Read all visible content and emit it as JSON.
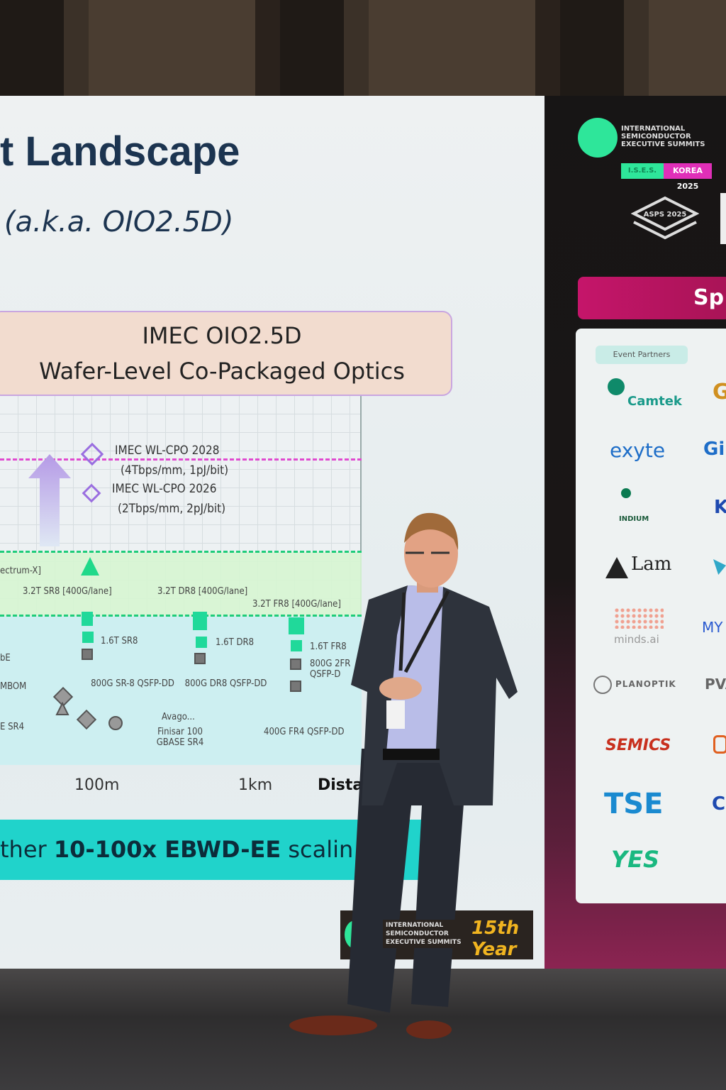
{
  "slide": {
    "title": "t Landscape",
    "subtitle": "(a.k.a. OIO2.5D)",
    "box_line1": "IMEC OIO2.5D",
    "box_line2": "Wafer-Level Co-Packaged Optics",
    "annotations": {
      "wlcpo2028": "IMEC WL-CPO 2028",
      "wlcpo2028_spec": "(4Tbps/mm, 1pJ/bit)",
      "wlcpo2026": "IMEC WL-CPO 2026",
      "wlcpo2026_spec": "(2Tbps/mm, 2pJ/bit)",
      "spectrum": "ectrum-X]",
      "sr8_32": "3.2T SR8 [400G/lane]",
      "dr8_32": "3.2T DR8 [400G/lane]",
      "fr8_32": "3.2T FR8 [400G/lane]",
      "sr8_16": "1.6T SR8",
      "dr8_16": "1.6T DR8",
      "fr8_16": "1.6T FR8",
      "sr8_800": "800G SR-8 QSFP-DD",
      "dr8_800": "800G DR8 QSFP-DD",
      "fr_800": "800G 2FR QSFP-D",
      "fr4_400": "400G FR4 QSFP-DD",
      "avago": "Avago...",
      "finisar": "Finisar 100 GBASE SR4",
      "left1": "bE",
      "left2": "MBOM",
      "left3": "E SR4"
    },
    "x_ticks": [
      "100m",
      "1km"
    ],
    "x_label": "Dista",
    "banner_pre": "ther ",
    "banner_bold": "10-100x EBWD-EE",
    "banner_post": " scalin"
  },
  "side_panel": {
    "ises_text": "INTERNATIONAL SEMICONDUCTOR EXECUTIVE SUMMITS",
    "ises_badge": "I.S.E.S.",
    "korea": "KOREA 2025",
    "asps": "ASPS 2025",
    "sponsors_heading": "Sp",
    "event_partners": "Event Partners",
    "logos_col1": [
      "Camtek",
      "exyte",
      "INDIUM",
      "Lam",
      "minds.ai",
      "PLANOPTIK",
      "SEMICS",
      "TSE",
      "YES"
    ],
    "logos_col2": [
      "G",
      "Gi",
      "K",
      "",
      "MY",
      "PVA",
      "",
      "C",
      ""
    ]
  },
  "slide_footer": {
    "logo_text": "INTERNATIONAL SEMICONDUCTOR EXECUTIVE SUMMITS",
    "anniversary": "15th Year"
  },
  "colors": {
    "navy": "#1c3450",
    "magenta": "#c5156a",
    "teal": "#20d3cb",
    "green": "#2ee69a"
  }
}
